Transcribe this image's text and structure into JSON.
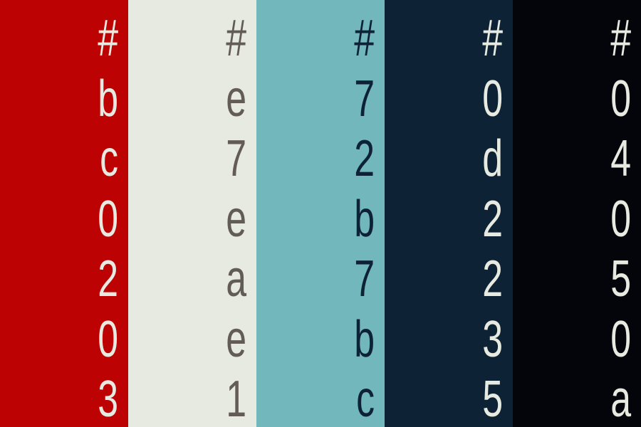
{
  "swatches": [
    {
      "background": "#bc0203",
      "text_color": "#e7eae1",
      "chars": [
        "#",
        "b",
        "c",
        "0",
        "2",
        "0",
        "3"
      ]
    },
    {
      "background": "#e7eae1",
      "text_color": "#635b56",
      "chars": [
        "#",
        "e",
        "7",
        "e",
        "a",
        "e",
        "1"
      ]
    },
    {
      "background": "#72b7bc",
      "text_color": "#0d2235",
      "chars": [
        "#",
        "7",
        "2",
        "b",
        "7",
        "b",
        "c"
      ]
    },
    {
      "background": "#0d2235",
      "text_color": "#e7eae1",
      "chars": [
        "#",
        "0",
        "d",
        "2",
        "2",
        "3",
        "5"
      ]
    },
    {
      "background": "#04050a",
      "text_color": "#e7eae1",
      "chars": [
        "#",
        "0",
        "4",
        "0",
        "5",
        "0",
        "a"
      ]
    }
  ]
}
